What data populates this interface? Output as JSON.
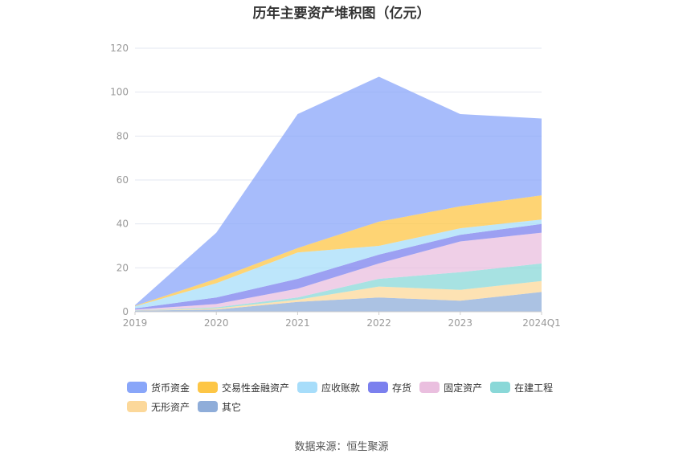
{
  "chart_data": {
    "type": "area",
    "stacked": true,
    "title": "历年主要资产堆积图（亿元）",
    "categories": [
      "2019",
      "2020",
      "2021",
      "2022",
      "2023",
      "2024Q1"
    ],
    "ylim": [
      0,
      120
    ],
    "yticks": [
      0,
      20,
      40,
      60,
      80,
      100,
      120
    ],
    "grid": true,
    "legend_position": "bottom",
    "series": [
      {
        "name": "其它",
        "color": "#8fadd9",
        "values": [
          0.5,
          1.0,
          4.5,
          6.5,
          5.0,
          9.0
        ]
      },
      {
        "name": "无形资产",
        "color": "#fcd89a",
        "values": [
          0.1,
          0.5,
          1.0,
          5.0,
          5.0,
          5.0
        ]
      },
      {
        "name": "在建工程",
        "color": "#8ad8d8",
        "values": [
          0.1,
          0.5,
          1.0,
          3.5,
          8.0,
          8.0
        ]
      },
      {
        "name": "固定资产",
        "color": "#eabfdf",
        "values": [
          0.3,
          1.5,
          4.0,
          7.0,
          14.0,
          14.0
        ]
      },
      {
        "name": "存货",
        "color": "#7b80ee",
        "values": [
          0.5,
          3.0,
          4.5,
          4.0,
          3.0,
          4.0
        ]
      },
      {
        "name": "应收账款",
        "color": "#a7ddfa",
        "values": [
          1.0,
          6.5,
          12.0,
          4.0,
          3.0,
          2.0
        ]
      },
      {
        "name": "交易性金融资产",
        "color": "#fdc646",
        "values": [
          0.2,
          2.0,
          2.0,
          11.0,
          10.0,
          11.0
        ]
      },
      {
        "name": "货币资金",
        "color": "#89a6f9",
        "values": [
          0.3,
          21.0,
          61.0,
          66.0,
          42.0,
          35.0
        ]
      }
    ]
  },
  "source": "数据来源：恒生聚源"
}
